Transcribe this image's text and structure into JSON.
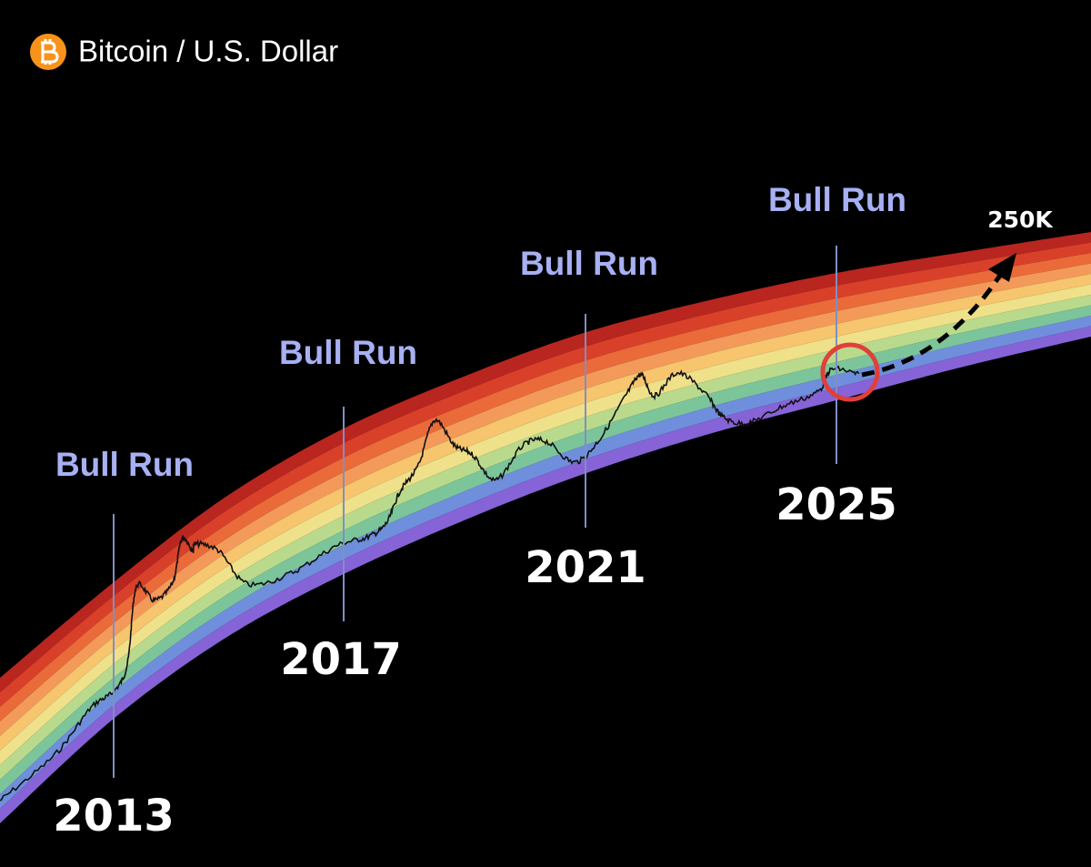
{
  "header": {
    "title": "Bitcoin / U.S. Dollar"
  },
  "bull_runs": [
    "Bull Run",
    "Bull Run",
    "Bull Run",
    "Bull Run"
  ],
  "years": [
    "2013",
    "2017",
    "2021",
    "2025"
  ],
  "target": "250K"
}
